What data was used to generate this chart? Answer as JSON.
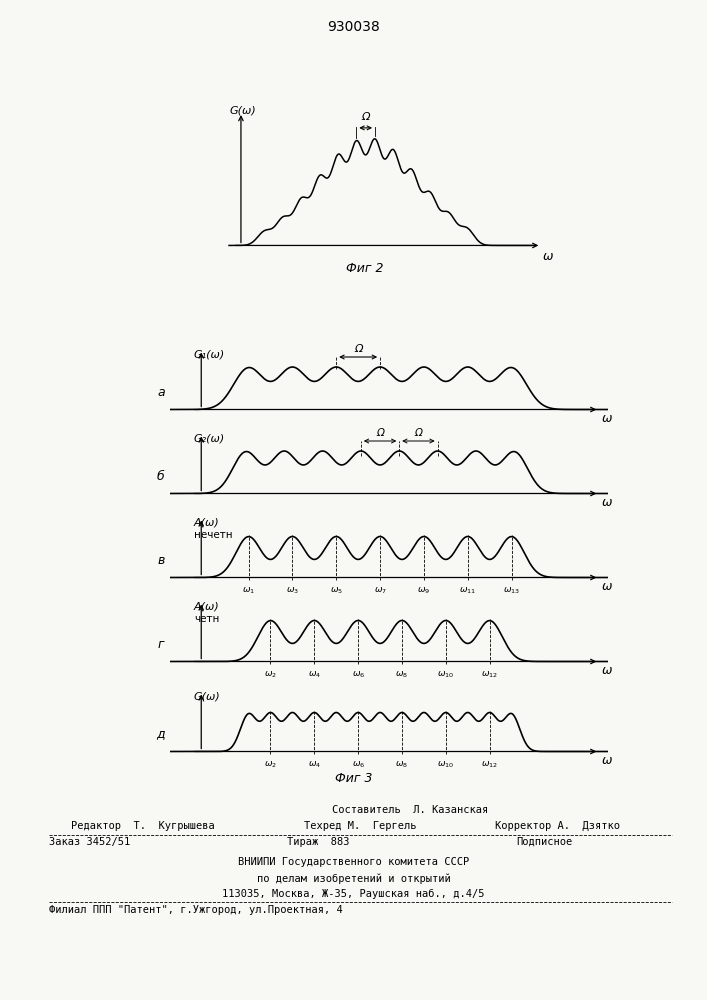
{
  "title": "930038",
  "bg_color": "#f8f8f4",
  "fig2_caption": "Фиг 2",
  "fig3_caption": "Фиг 3",
  "footer": {
    "line1_center": "Составитель  Л. Казанская",
    "line2_left": "Редактор  Т.  Кугрышева",
    "line2_mid": "Техред М.  Гергель",
    "line2_right": "Корректор А.  Дзятко",
    "line3_left": "Заказ 3452/51",
    "line3_mid": "Тираж  883",
    "line3_right": "Подписное",
    "line4": "ВНИИПИ Государственного комитета СССР",
    "line5": "по делам изобретений и открытий",
    "line6": "113035, Москва, Ж-35, Раушская наб., д.4/5",
    "line7": "Филиал ППП \"Патент\", г.Ужгород, ул.Проектная, 4"
  }
}
